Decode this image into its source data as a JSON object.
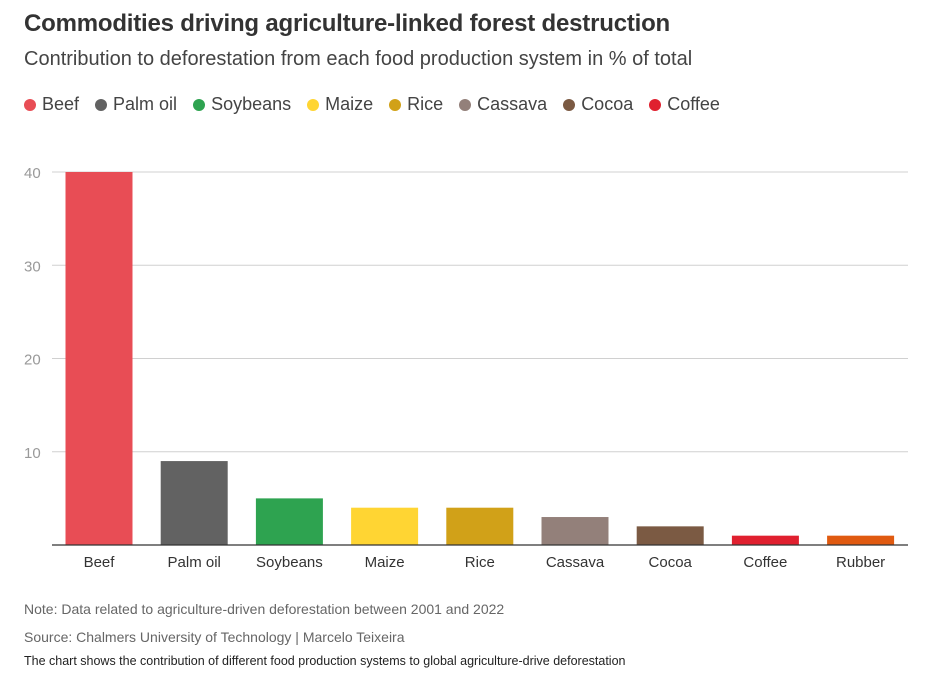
{
  "chart_data": {
    "type": "bar",
    "title": "Commodities driving agriculture-linked forest destruction",
    "subtitle": "Contribution to deforestation from each food production system in % of total",
    "categories": [
      "Beef",
      "Palm oil",
      "Soybeans",
      "Maize",
      "Rice",
      "Cassava",
      "Cocoa",
      "Coffee",
      "Rubber"
    ],
    "values": [
      40,
      9,
      5,
      4,
      4,
      3,
      2,
      1,
      1
    ],
    "colors": [
      "#e84d55",
      "#626262",
      "#2ea350",
      "#ffd533",
      "#d1a118",
      "#93807a",
      "#7b5a43",
      "#e0202f",
      "#e05a10"
    ],
    "legend": [
      {
        "label": "Beef",
        "color": "#e84d55"
      },
      {
        "label": "Palm oil",
        "color": "#626262"
      },
      {
        "label": "Soybeans",
        "color": "#2ea350"
      },
      {
        "label": "Maize",
        "color": "#ffd533"
      },
      {
        "label": "Rice",
        "color": "#d1a118"
      },
      {
        "label": "Cassava",
        "color": "#93807a"
      },
      {
        "label": "Cocoa",
        "color": "#7b5a43"
      },
      {
        "label": "Coffee",
        "color": "#e0202f"
      }
    ],
    "yticks": [
      10,
      20,
      30,
      40
    ],
    "ylim": [
      0,
      40
    ],
    "xlabel": "",
    "ylabel": "",
    "grid": true
  },
  "footer": {
    "note": "Note: Data related to agriculture-driven deforestation between 2001 and 2022",
    "source": "Source: Chalmers University of Technology | Marcelo Teixeira",
    "caption": "The chart shows the contribution of different food production systems to global agriculture-drive deforestation"
  }
}
